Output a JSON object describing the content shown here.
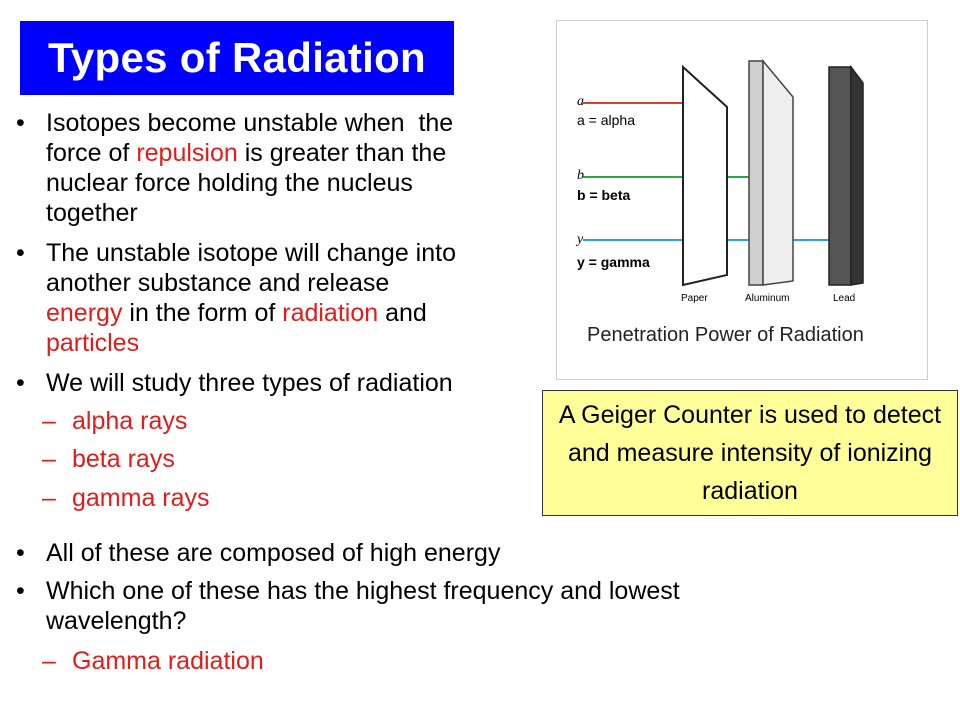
{
  "title": "Types of Radiation",
  "bullets": {
    "b1": {
      "l1": "Isotopes become unstable when  the",
      "l2a": "force of ",
      "l2b": "repulsion",
      "l2c": " is greater than the",
      "l3": "nuclear force holding the nucleus",
      "l4": "together"
    },
    "b2": {
      "l1": "The unstable isotope will change into",
      "l2": "another substance and release",
      "l3a": "energy",
      "l3b": " in the form of ",
      "l3c": "radiation",
      "l3d": " and",
      "l4": "particles"
    },
    "b3": {
      "l1": "We will study three types of radiation"
    },
    "subs": [
      "alpha rays",
      "beta rays",
      "gamma rays"
    ],
    "b4": {
      "l1": "All of these are composed of high energy"
    },
    "b5": {
      "l1": "Which one of these has the highest frequency and lowest",
      "l2": "wavelength?"
    },
    "sub_answer": "Gamma radiation"
  },
  "figure": {
    "labels": {
      "alpha_symbol": "a",
      "alpha": "a = alpha",
      "beta_symbol": "b",
      "beta": "b = beta",
      "gamma_symbol": "y",
      "gamma": "y = gamma"
    },
    "materials": [
      "Paper",
      "Aluminum",
      "Lead"
    ],
    "caption": "Penetration Power of Radiation",
    "colors": {
      "alpha": "#e53a2a",
      "beta": "#2aa648",
      "gamma": "#2aa7d8"
    }
  },
  "callout": "A Geiger Counter is used to detect and measure intensity of ionizing radiation",
  "colors": {
    "title_bg": "#0000ff",
    "accent_red": "#e21b1b",
    "callout_bg": "#ffff99"
  }
}
